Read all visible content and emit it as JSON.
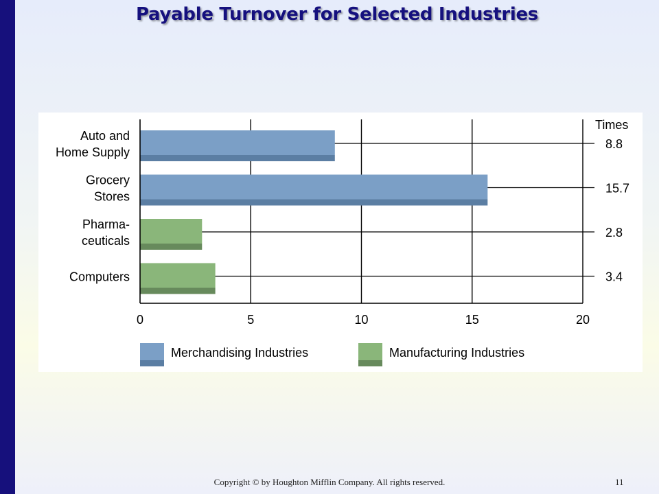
{
  "slide": {
    "title": "Payable Turnover for Selected Industries",
    "footer": "Copyright © by Houghton Mifflin Company. All rights reserved.",
    "page_number": "11"
  },
  "colors": {
    "accent_bar": "#16107c",
    "title": "#15107e",
    "merchandising": "#7b9fc6",
    "merchandising_shade": "#5b7ea3",
    "manufacturing": "#8ab67a",
    "manufacturing_shade": "#678a5c"
  },
  "chart_data": {
    "type": "bar",
    "orientation": "horizontal",
    "title": "Payable Turnover for Selected Industries",
    "value_header": "Times",
    "xlim": [
      0,
      20
    ],
    "xticks": [
      0,
      5,
      10,
      15,
      20
    ],
    "grid": true,
    "legend_position": "bottom",
    "categories": [
      {
        "label_lines": [
          "Auto and",
          "Home Supply"
        ],
        "value": 8.8,
        "value_label": "8.8",
        "group": "Merchandising Industries"
      },
      {
        "label_lines": [
          "Grocery",
          "Stores"
        ],
        "value": 15.7,
        "value_label": "15.7",
        "group": "Merchandising Industries"
      },
      {
        "label_lines": [
          "Pharma-",
          "ceuticals"
        ],
        "value": 2.8,
        "value_label": "2.8",
        "group": "Manufacturing Industries"
      },
      {
        "label_lines": [
          "Computers"
        ],
        "value": 3.4,
        "value_label": "3.4",
        "group": "Manufacturing Industries"
      }
    ],
    "legend": [
      {
        "name": "Merchandising Industries",
        "color": "#7b9fc6",
        "shade": "#5b7ea3"
      },
      {
        "name": "Manufacturing Industries",
        "color": "#8ab67a",
        "shade": "#678a5c"
      }
    ]
  }
}
